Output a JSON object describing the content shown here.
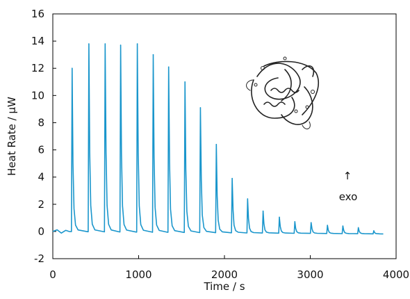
{
  "chart_data": {
    "type": "line",
    "title": "",
    "xlabel": "Time / s",
    "ylabel": "Heat Rate / µW",
    "xlim": [
      0,
      4000
    ],
    "ylim": [
      -2,
      16
    ],
    "xticks": [
      0,
      1000,
      2000,
      3000,
      4000
    ],
    "yticks": [
      -2,
      0,
      2,
      4,
      6,
      8,
      10,
      12,
      14,
      16
    ],
    "xtick_labels": [
      "0",
      "1000",
      "2000",
      "3000",
      "4000"
    ],
    "ytick_labels": [
      "-2",
      "0",
      "2",
      "4",
      "6",
      "8",
      "10",
      "12",
      "14",
      "16"
    ],
    "grid": false,
    "line_color": "#1a96cc",
    "annotations": [
      {
        "text": "exo",
        "arrow": "↑"
      }
    ],
    "inset_image": "protein-ribbon-structure",
    "baseline": [
      {
        "x": 0,
        "y": 0.0
      },
      {
        "x": 50,
        "y": 0.12
      },
      {
        "x": 100,
        "y": -0.12
      },
      {
        "x": 150,
        "y": 0.08
      },
      {
        "x": 190,
        "y": 0.0
      },
      {
        "x": 3850,
        "y": -0.18
      }
    ],
    "peaks": [
      {
        "x": 225,
        "y": 12.0
      },
      {
        "x": 420,
        "y": 13.8
      },
      {
        "x": 610,
        "y": 13.8
      },
      {
        "x": 790,
        "y": 13.7
      },
      {
        "x": 985,
        "y": 13.8
      },
      {
        "x": 1170,
        "y": 13.0
      },
      {
        "x": 1350,
        "y": 12.1
      },
      {
        "x": 1540,
        "y": 11.0
      },
      {
        "x": 1720,
        "y": 9.1
      },
      {
        "x": 1905,
        "y": 6.4
      },
      {
        "x": 2090,
        "y": 3.9
      },
      {
        "x": 2270,
        "y": 2.4
      },
      {
        "x": 2450,
        "y": 1.5
      },
      {
        "x": 2640,
        "y": 1.05
      },
      {
        "x": 2820,
        "y": 0.72
      },
      {
        "x": 3010,
        "y": 0.65
      },
      {
        "x": 3200,
        "y": 0.45
      },
      {
        "x": 3380,
        "y": 0.4
      },
      {
        "x": 3560,
        "y": 0.28
      },
      {
        "x": 3740,
        "y": 0.05
      }
    ]
  }
}
